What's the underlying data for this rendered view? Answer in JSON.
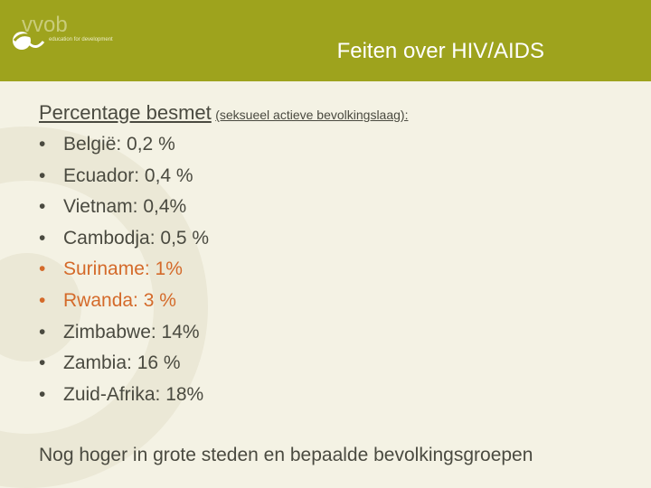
{
  "header": {
    "logo_word": "vvob",
    "logo_tagline": "education for development",
    "title": "Feiten over HIV/AIDS"
  },
  "content": {
    "subtitle_main": "Percentage besmet",
    "subtitle_note": "(seksueel actieve bevolkingslaag):",
    "bullet_symbol": "•",
    "items": [
      {
        "label": "België: 0,2 %",
        "color": "#4a4a40"
      },
      {
        "label": "Ecuador: 0,4 %",
        "color": "#4a4a40"
      },
      {
        "label": "Vietnam: 0,4%",
        "color": "#4a4a40"
      },
      {
        "label": "Cambodja: 0,5 %",
        "color": "#4a4a40"
      },
      {
        "label": "Suriname: 1%",
        "color": "#d46a2a"
      },
      {
        "label": "Rwanda: 3 %",
        "color": "#d46a2a"
      },
      {
        "label": "Zimbabwe: 14%",
        "color": "#4a4a40"
      },
      {
        "label": "Zambia: 16 %",
        "color": "#4a4a40"
      },
      {
        "label": "Zuid-Afrika: 18%",
        "color": "#4a4a40"
      }
    ],
    "footer": "Nog hoger in grote steden en bepaalde bevolkingsgroepen"
  },
  "colors": {
    "banner": "#9ea31d",
    "background": "#f4f2e4",
    "text": "#4a4a40",
    "highlight": "#d46a2a"
  }
}
